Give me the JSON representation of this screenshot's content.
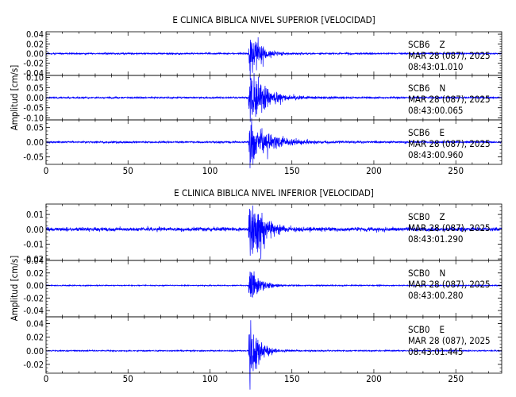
{
  "chart_data": [
    {
      "type": "line",
      "title": "E CLINICA BIBLICA NIVEL SUPERIOR [VELOCIDAD]",
      "ylabel": "Amplitud [cm/s]",
      "xlim": [
        0,
        278
      ],
      "xticks": [
        0,
        50,
        100,
        150,
        200,
        250
      ],
      "line_color": "#0000ff",
      "panels": [
        {
          "station": "SCB6",
          "component": "Z",
          "date": "MAR 28 (087), 2025",
          "time": "08:43:01.010",
          "ylim": [
            -0.045,
            0.045
          ],
          "yticks": [
            -0.04,
            -0.02,
            0.0,
            0.02,
            0.04
          ],
          "yticklabels": [
            "-0.04",
            "-0.02",
            "0.00",
            "0.02",
            "0.04"
          ],
          "noise": 0.0008,
          "onset": 123.5,
          "peak": 0.038,
          "decay": 5.5,
          "coda": 0.002
        },
        {
          "station": "SCB6",
          "component": "N",
          "date": "MAR 28 (087), 2025",
          "time": "08:43:00.065",
          "ylim": [
            -0.11,
            0.11
          ],
          "yticks": [
            -0.1,
            -0.05,
            0.0,
            0.05,
            0.1
          ],
          "yticklabels": [
            "-0.10",
            "-0.05",
            "0.00",
            "0.05",
            "0.10"
          ],
          "noise": 0.002,
          "onset": 123.5,
          "peak": 0.085,
          "decay": 9,
          "coda": 0.006
        },
        {
          "station": "SCB6",
          "component": "E",
          "date": "MAR 28 (087), 2025",
          "time": "08:43:00.960",
          "ylim": [
            -0.075,
            0.075
          ],
          "yticks": [
            -0.05,
            0.0,
            0.05
          ],
          "yticklabels": [
            "-0.05",
            "0.00",
            "0.05"
          ],
          "noise": 0.0015,
          "onset": 123.5,
          "peak": 0.065,
          "decay": 9,
          "coda": 0.005
        }
      ]
    },
    {
      "type": "line",
      "title": "E CLINICA BIBLICA NIVEL INFERIOR [VELOCIDAD]",
      "ylabel": "Amplitud [cm/s]",
      "xlim": [
        0,
        278
      ],
      "xticks": [
        0,
        50,
        100,
        150,
        200,
        250
      ],
      "line_color": "#0000ff",
      "panels": [
        {
          "station": "SCB0",
          "component": "Z",
          "date": "MAR 28 (087), 2025",
          "time": "08:43:01.290",
          "ylim": [
            -0.021,
            0.017
          ],
          "yticks": [
            -0.02,
            -0.01,
            0.0,
            0.01
          ],
          "yticklabels": [
            "-0.02",
            "-0.01",
            "0.00",
            "0.01"
          ],
          "noise": 0.0006,
          "onset": 123.5,
          "peak": 0.016,
          "decay": 7,
          "coda": 0.0012
        },
        {
          "station": "SCB0",
          "component": "N",
          "date": "MAR 28 (087), 2025",
          "time": "08:43:00.280",
          "ylim": [
            -0.05,
            0.04
          ],
          "yticks": [
            -0.04,
            -0.02,
            0.0,
            0.02,
            0.04
          ],
          "yticklabels": [
            "-0.04",
            "-0.02",
            "0.00",
            "0.02",
            "0.04"
          ],
          "noise": 0.0004,
          "onset": 123.5,
          "peak": 0.026,
          "decay": 5,
          "coda": 0.0012
        },
        {
          "station": "SCB0",
          "component": "E",
          "date": "MAR 28 (087), 2025",
          "time": "08:43:01.445",
          "ylim": [
            -0.033,
            0.05
          ],
          "yticks": [
            -0.02,
            0.0,
            0.02,
            0.04
          ],
          "yticklabels": [
            "-0.02",
            "0.00",
            "0.02",
            "0.04"
          ],
          "noise": 0.0004,
          "onset": 123.5,
          "peak": 0.045,
          "decay": 4.5,
          "coda": 0.0015
        }
      ]
    }
  ]
}
